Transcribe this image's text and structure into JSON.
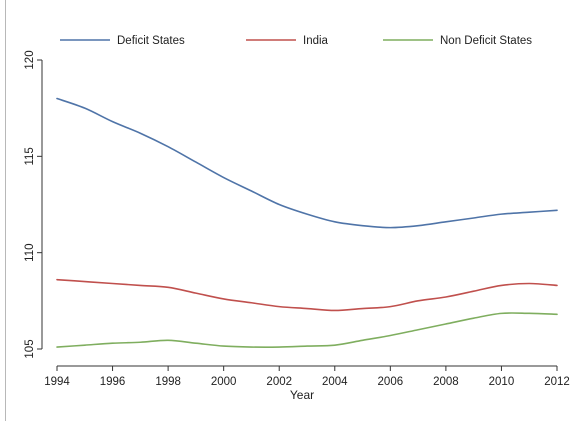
{
  "chart_data": {
    "type": "line",
    "title": "",
    "xlabel": "Year",
    "ylabel": "",
    "xlim": [
      1994,
      2012
    ],
    "ylim": [
      105,
      120
    ],
    "xticks": [
      1994,
      1996,
      1998,
      2000,
      2002,
      2004,
      2006,
      2008,
      2010,
      2012
    ],
    "yticks": [
      105,
      110,
      115,
      120
    ],
    "grid": false,
    "legend_position": "top",
    "x": [
      1994,
      1995,
      1996,
      1997,
      1998,
      1999,
      2000,
      2001,
      2002,
      2003,
      2004,
      2005,
      2006,
      2007,
      2008,
      2009,
      2010,
      2011,
      2012
    ],
    "series": [
      {
        "name": "Deficit States",
        "color": "#4f74a8",
        "values": [
          118.0,
          117.5,
          116.8,
          116.2,
          115.5,
          114.7,
          113.9,
          113.2,
          112.5,
          112.0,
          111.6,
          111.4,
          111.3,
          111.4,
          111.6,
          111.8,
          112.0,
          112.1,
          112.2
        ]
      },
      {
        "name": "India",
        "color": "#c0504d",
        "values": [
          108.6,
          108.5,
          108.4,
          108.3,
          108.2,
          107.9,
          107.6,
          107.4,
          107.2,
          107.1,
          107.0,
          107.1,
          107.2,
          107.5,
          107.7,
          108.0,
          108.3,
          108.4,
          108.3
        ]
      },
      {
        "name": "Non Deficit States",
        "color": "#7fae5f",
        "values": [
          105.1,
          105.2,
          105.3,
          105.35,
          105.45,
          105.3,
          105.15,
          105.1,
          105.1,
          105.15,
          105.2,
          105.45,
          105.7,
          106.0,
          106.3,
          106.6,
          106.85,
          106.85,
          106.8
        ]
      }
    ]
  }
}
